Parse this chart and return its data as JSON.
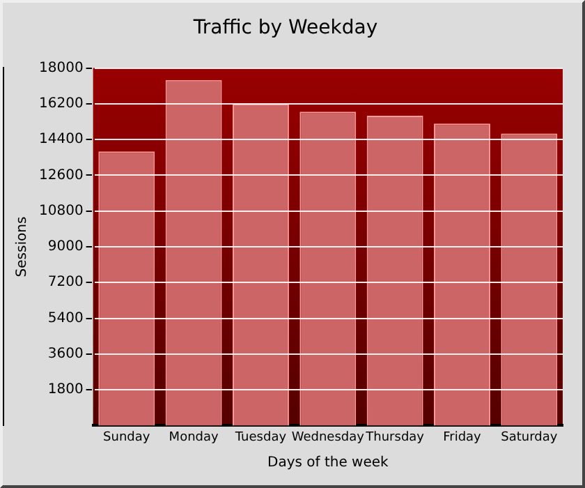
{
  "chart_data": {
    "type": "bar",
    "title": "Traffic by Weekday",
    "xlabel": "Days of the week",
    "ylabel": "Sessions",
    "categories": [
      "Sunday",
      "Monday",
      "Tuesday",
      "Wednesday",
      "Thursday",
      "Friday",
      "Saturday"
    ],
    "values": [
      13800,
      17400,
      16200,
      15800,
      15600,
      15200,
      14700
    ],
    "color": "#cc6666",
    "ylim": [
      0,
      18000
    ],
    "yticks": [
      1800,
      3600,
      5400,
      7200,
      9000,
      10800,
      12600,
      14400,
      16200,
      18000
    ],
    "grid": "y",
    "legend": false
  }
}
